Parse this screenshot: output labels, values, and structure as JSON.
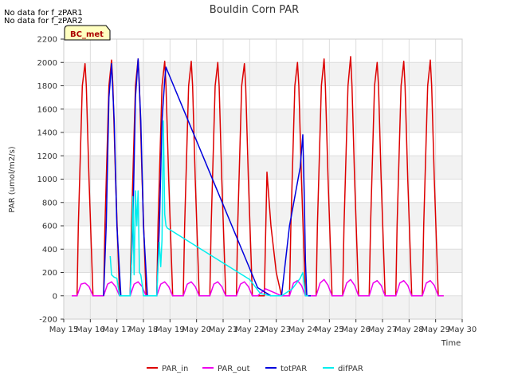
{
  "chart_data": {
    "type": "line",
    "title": "Bouldin Corn PAR",
    "xlabel": "Time",
    "ylabel": "PAR (umol/m2/s)",
    "ylim": [
      -200,
      2200
    ],
    "xlim": [
      15,
      30
    ],
    "yticks": [
      -200,
      0,
      200,
      400,
      600,
      800,
      1000,
      1200,
      1400,
      1600,
      1800,
      2000,
      2200
    ],
    "xticks": [
      15,
      16,
      17,
      18,
      19,
      20,
      21,
      22,
      23,
      24,
      25,
      26,
      27,
      28,
      29,
      30
    ],
    "xtick_labels": [
      "May 15",
      "May 16",
      "May 17",
      "May 18",
      "May 19",
      "May 20",
      "May 21",
      "May 22",
      "May 23",
      "May 24",
      "May 25",
      "May 26",
      "May 27",
      "May 28",
      "May 29",
      "May 30"
    ],
    "grid": true,
    "banded_background": true,
    "legend_position": "bottom",
    "notes": [
      "No data for f_zPAR1",
      "No data for f_zPAR2"
    ],
    "annotation_box": "BC_met",
    "series": [
      {
        "name": "PAR_in",
        "color": "#dd0000",
        "x": [
          15.3,
          15.5,
          15.55,
          15.7,
          15.8,
          15.85,
          15.95,
          16.1,
          16.2,
          16.3,
          16.5,
          16.55,
          16.7,
          16.8,
          16.85,
          16.95,
          17.1,
          17.2,
          17.3,
          17.5,
          17.55,
          17.7,
          17.8,
          17.85,
          17.95,
          18.1,
          18.2,
          18.3,
          18.5,
          18.55,
          18.7,
          18.8,
          18.85,
          18.95,
          19.1,
          19.2,
          19.3,
          19.5,
          19.55,
          19.7,
          19.8,
          19.85,
          19.95,
          20.1,
          20.2,
          20.3,
          20.5,
          20.55,
          20.7,
          20.8,
          20.85,
          20.95,
          21.1,
          21.2,
          21.3,
          21.5,
          21.55,
          21.7,
          21.8,
          21.85,
          21.95,
          22.1,
          22.2,
          22.3,
          22.55,
          22.65,
          22.8,
          23.0,
          23.2,
          23.3,
          23.5,
          23.55,
          23.7,
          23.8,
          23.85,
          23.95,
          24.1,
          24.2,
          24.3,
          24.5,
          24.55,
          24.7,
          24.8,
          24.85,
          24.95,
          25.1,
          25.2,
          25.3,
          25.5,
          25.55,
          25.7,
          25.8,
          25.85,
          25.95,
          26.1,
          26.2,
          26.3,
          26.5,
          26.55,
          26.7,
          26.8,
          26.85,
          26.95,
          27.1,
          27.2,
          27.3,
          27.5,
          27.55,
          27.7,
          27.8,
          27.85,
          27.95,
          28.1,
          28.2,
          28.3,
          28.5,
          28.55,
          28.7,
          28.8,
          28.85,
          28.95,
          29.1,
          29.2,
          29.3
        ],
        "y": [
          0,
          0,
          600,
          1800,
          1990,
          1800,
          1000,
          0,
          0,
          0,
          0,
          600,
          1800,
          2020,
          1800,
          1000,
          0,
          0,
          0,
          0,
          600,
          1800,
          2030,
          1800,
          1000,
          0,
          0,
          0,
          0,
          600,
          1800,
          2010,
          1800,
          1000,
          0,
          0,
          0,
          0,
          600,
          1800,
          2010,
          1800,
          1000,
          0,
          0,
          0,
          0,
          600,
          1800,
          2000,
          1800,
          1000,
          0,
          0,
          0,
          0,
          600,
          1800,
          1990,
          1800,
          1000,
          0,
          0,
          0,
          0,
          1060,
          600,
          200,
          0,
          0,
          0,
          600,
          1800,
          2000,
          1800,
          1000,
          0,
          0,
          0,
          0,
          600,
          1800,
          2030,
          1800,
          1000,
          0,
          0,
          0,
          0,
          600,
          1800,
          2050,
          1800,
          1000,
          0,
          0,
          0,
          0,
          600,
          1800,
          2000,
          1800,
          1000,
          0,
          0,
          0,
          0,
          600,
          1800,
          2010,
          1800,
          1000,
          0,
          0,
          0,
          0,
          600,
          1800,
          2020,
          1800,
          1000,
          0,
          0,
          0
        ]
      },
      {
        "name": "PAR_out",
        "color": "#ee00ee",
        "x": [
          15.3,
          15.5,
          15.65,
          15.8,
          15.95,
          16.1,
          16.3,
          16.5,
          16.65,
          16.8,
          16.95,
          17.1,
          17.3,
          17.5,
          17.65,
          17.8,
          17.95,
          18.1,
          18.3,
          18.5,
          18.65,
          18.8,
          18.95,
          19.1,
          19.3,
          19.5,
          19.65,
          19.8,
          19.95,
          20.1,
          20.3,
          20.5,
          20.65,
          20.8,
          20.95,
          21.1,
          21.3,
          21.5,
          21.65,
          21.8,
          21.95,
          22.1,
          22.3,
          22.6,
          22.8,
          23.0,
          23.2,
          23.3,
          23.5,
          23.65,
          23.8,
          23.95,
          24.1,
          24.3,
          24.5,
          24.65,
          24.8,
          24.95,
          25.1,
          25.3,
          25.5,
          25.65,
          25.8,
          25.95,
          26.1,
          26.3,
          26.5,
          26.65,
          26.8,
          26.95,
          27.1,
          27.3,
          27.5,
          27.65,
          27.8,
          27.95,
          28.1,
          28.3,
          28.5,
          28.65,
          28.8,
          28.95,
          29.1,
          29.3
        ],
        "y": [
          0,
          0,
          100,
          110,
          80,
          0,
          0,
          0,
          100,
          120,
          80,
          0,
          0,
          0,
          100,
          120,
          80,
          0,
          0,
          0,
          100,
          120,
          80,
          0,
          0,
          0,
          100,
          120,
          80,
          0,
          0,
          0,
          100,
          120,
          80,
          0,
          0,
          0,
          100,
          120,
          80,
          0,
          0,
          60,
          40,
          20,
          0,
          0,
          0,
          110,
          130,
          90,
          0,
          0,
          0,
          110,
          140,
          90,
          0,
          0,
          0,
          110,
          140,
          90,
          0,
          0,
          0,
          110,
          130,
          90,
          0,
          0,
          0,
          110,
          130,
          90,
          0,
          0,
          0,
          110,
          130,
          90,
          0,
          0
        ]
      },
      {
        "name": "totPAR",
        "color": "#0000dd",
        "x": [
          16.5,
          16.6,
          16.7,
          16.8,
          16.9,
          17.0,
          17.15,
          17.3,
          17.5,
          17.6,
          17.7,
          17.8,
          17.9,
          18.0,
          18.15,
          18.3,
          18.5,
          18.6,
          18.7,
          18.8,
          18.85,
          18.9,
          22.3,
          22.8,
          23.2,
          23.5,
          23.9,
          24.0,
          24.05,
          24.1,
          24.15,
          24.3
        ],
        "y": [
          0,
          600,
          1700,
          1990,
          1500,
          600,
          0,
          0,
          0,
          600,
          1700,
          2030,
          1500,
          600,
          0,
          0,
          0,
          600,
          1500,
          1850,
          1960,
          1930,
          70,
          0,
          0,
          600,
          1100,
          1380,
          900,
          300,
          0,
          0
        ]
      },
      {
        "name": "difPAR",
        "color": "#00eeee",
        "x": [
          16.75,
          16.8,
          16.9,
          17.0,
          17.1,
          17.5,
          17.55,
          17.6,
          17.65,
          17.7,
          17.75,
          17.8,
          17.85,
          17.9,
          17.95,
          18.0,
          18.5,
          18.55,
          18.6,
          18.65,
          18.7,
          18.75,
          18.8,
          18.85,
          18.9,
          22.0,
          22.4,
          22.8,
          23.2,
          23.6,
          23.9,
          24.0,
          24.1,
          24.2
        ],
        "y": [
          340,
          180,
          160,
          150,
          0,
          0,
          300,
          850,
          180,
          900,
          600,
          900,
          200,
          180,
          100,
          0,
          0,
          250,
          460,
          250,
          480,
          1500,
          700,
          600,
          580,
          140,
          20,
          0,
          0,
          60,
          150,
          200,
          0,
          0
        ]
      }
    ]
  }
}
